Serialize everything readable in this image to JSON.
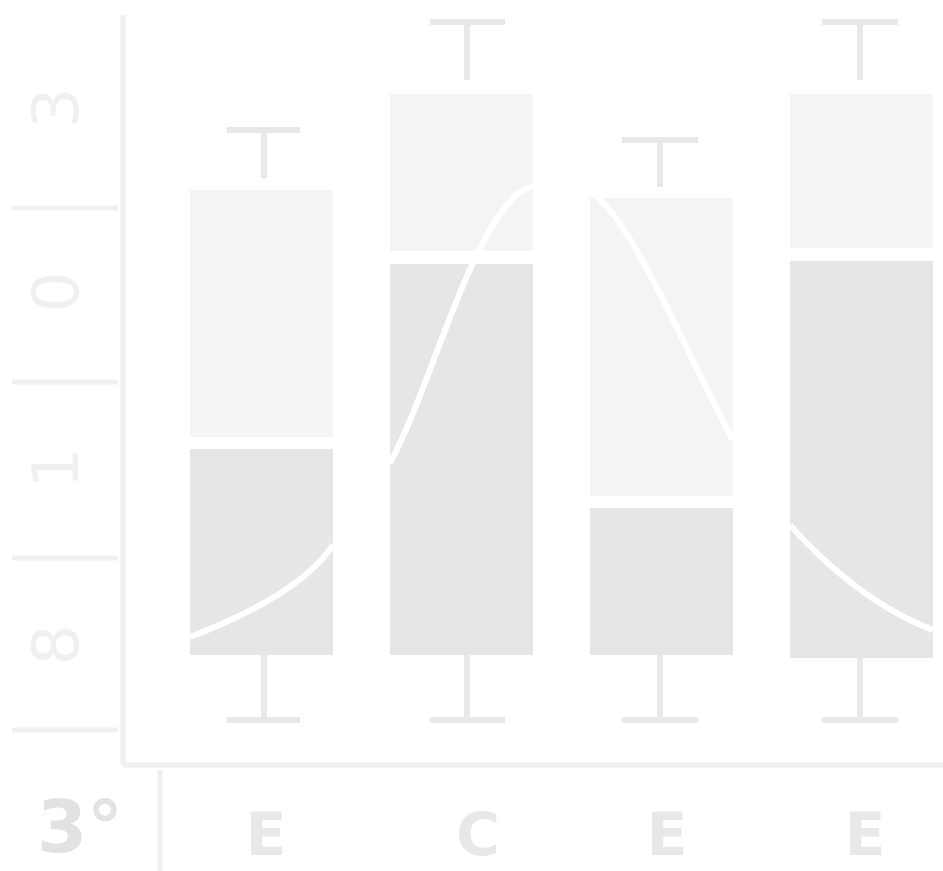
{
  "axis": {
    "corner_label": "3°",
    "y_labels": [
      "8",
      "1",
      "0",
      "3"
    ]
  },
  "x_labels": [
    "E",
    "C",
    "E",
    "E"
  ]
}
